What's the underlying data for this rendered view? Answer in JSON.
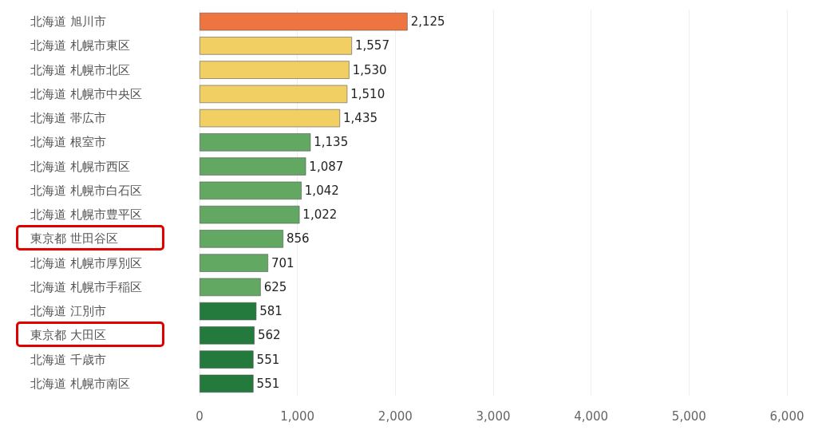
{
  "chart_data": {
    "type": "bar",
    "orientation": "horizontal",
    "categories": [
      "北海道 旭川市",
      "北海道 札幌市東区",
      "北海道 札幌市北区",
      "北海道 札幌市中央区",
      "北海道 帯広市",
      "北海道 根室市",
      "北海道 札幌市西区",
      "北海道 札幌市白石区",
      "北海道 札幌市豊平区",
      "東京都 世田谷区",
      "北海道 札幌市厚別区",
      "北海道 札幌市手稲区",
      "北海道 江別市",
      "東京都 大田区",
      "北海道 千歳市",
      "北海道 札幌市南区"
    ],
    "values": [
      2125,
      1557,
      1530,
      1510,
      1435,
      1135,
      1087,
      1042,
      1022,
      856,
      701,
      625,
      581,
      562,
      551,
      551
    ],
    "value_labels": [
      "2,125",
      "1,557",
      "1,530",
      "1,510",
      "1,435",
      "1,135",
      "1,087",
      "1,042",
      "1,022",
      "856",
      "701",
      "625",
      "581",
      "562",
      "551",
      "551"
    ],
    "colors": [
      "#ee7440",
      "#f2cf63",
      "#f2cf63",
      "#f2cf63",
      "#f2cf63",
      "#62a862",
      "#62a862",
      "#62a862",
      "#62a862",
      "#62a862",
      "#62a862",
      "#62a862",
      "#237a3c",
      "#237a3c",
      "#237a3c",
      "#237a3c"
    ],
    "xlim": [
      0,
      6000
    ],
    "xticks": [
      0,
      {
        "value": 1000,
        "label": "1,000"
      },
      {
        "value": 2000,
        "label": "2,000"
      },
      {
        "value": 3000,
        "label": "3,000"
      },
      {
        "value": 4000,
        "label": "4,000"
      },
      {
        "value": 5000,
        "label": "5,000"
      },
      {
        "value": 6000,
        "label": "6,000"
      }
    ],
    "grid": "x"
  }
}
